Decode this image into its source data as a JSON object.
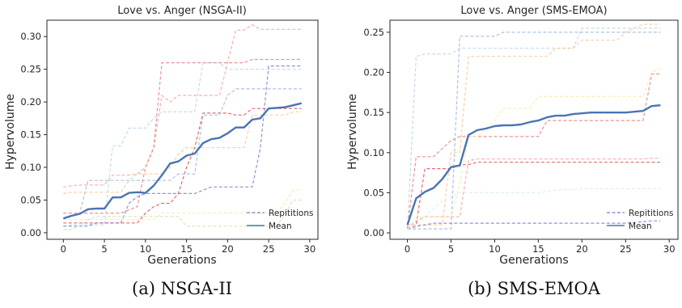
{
  "chart_data": [
    {
      "type": "line",
      "title": "Love vs. Anger (NSGA-II)",
      "xlabel": "Generations",
      "ylabel": "Hypervolume",
      "xlim": [
        -2,
        31
      ],
      "ylim": [
        -0.01,
        0.325
      ],
      "xticks": [
        0,
        5,
        10,
        15,
        20,
        25,
        30
      ],
      "yticks": [
        0.0,
        0.05,
        0.1,
        0.15,
        0.2,
        0.25,
        0.3
      ],
      "ytick_labels": [
        "0.00",
        "0.05",
        "0.10",
        "0.15",
        "0.20",
        "0.25",
        "0.30"
      ],
      "legend": {
        "position": "bottom-right",
        "entries": [
          "Repititions",
          "Mean"
        ]
      },
      "grid": false,
      "mean": {
        "name": "Mean",
        "color": "#4a74b4",
        "x": [
          0,
          1,
          2,
          3,
          4,
          5,
          6,
          7,
          8,
          9,
          10,
          11,
          12,
          13,
          14,
          15,
          16,
          17,
          18,
          19,
          20,
          21,
          22,
          23,
          24,
          25,
          26,
          27,
          28,
          29
        ],
        "y": [
          0.022,
          0.026,
          0.029,
          0.036,
          0.037,
          0.037,
          0.054,
          0.054,
          0.061,
          0.062,
          0.061,
          0.072,
          0.088,
          0.106,
          0.109,
          0.118,
          0.121,
          0.137,
          0.143,
          0.145,
          0.152,
          0.161,
          0.161,
          0.173,
          0.175,
          0.19,
          0.191,
          0.192,
          0.195,
          0.198
        ]
      },
      "repetitions": [
        {
          "color": "#f4a3a3",
          "y": [
            0.07,
            0.072,
            0.073,
            0.073,
            0.073,
            0.073,
            0.088,
            0.088,
            0.088,
            0.09,
            0.1,
            0.13,
            0.21,
            0.2,
            0.21,
            0.21,
            0.21,
            0.21,
            0.21,
            0.21,
            0.26,
            0.31,
            0.31,
            0.318,
            0.311,
            0.311,
            0.311,
            0.311,
            0.311,
            0.311
          ]
        },
        {
          "color": "#e88080",
          "y": [
            0.03,
            0.03,
            0.03,
            0.03,
            0.03,
            0.03,
            0.03,
            0.03,
            0.035,
            0.04,
            0.1,
            0.13,
            0.26,
            0.26,
            0.26,
            0.26,
            0.26,
            0.26,
            0.26,
            0.26,
            0.26,
            0.26,
            0.26,
            0.265,
            0.265,
            0.265,
            0.265,
            0.265,
            0.265,
            0.265
          ]
        },
        {
          "color": "#d9534f",
          "y": [
            0.015,
            0.015,
            0.015,
            0.015,
            0.015,
            0.015,
            0.015,
            0.015,
            0.015,
            0.015,
            0.03,
            0.04,
            0.045,
            0.045,
            0.06,
            0.1,
            0.13,
            0.183,
            0.183,
            0.183,
            0.183,
            0.18,
            0.18,
            0.19,
            0.19,
            0.19,
            0.19,
            0.19,
            0.19,
            0.19
          ]
        },
        {
          "color": "#9eb7de",
          "y": [
            0.02,
            0.025,
            0.03,
            0.08,
            0.08,
            0.08,
            0.08,
            0.08,
            0.08,
            0.08,
            0.08,
            0.08,
            0.08,
            0.08,
            0.09,
            0.09,
            0.09,
            0.18,
            0.18,
            0.18,
            0.21,
            0.22,
            0.22,
            0.22,
            0.22,
            0.22,
            0.22,
            0.22,
            0.22,
            0.22
          ]
        },
        {
          "color": "#b9d3ea",
          "y": [
            0.01,
            0.012,
            0.012,
            0.012,
            0.012,
            0.012,
            0.133,
            0.133,
            0.16,
            0.16,
            0.16,
            0.175,
            0.185,
            0.185,
            0.185,
            0.185,
            0.185,
            0.26,
            0.26,
            0.26,
            0.25,
            0.25,
            0.25,
            0.25,
            0.25,
            0.25,
            0.25,
            0.25,
            0.25,
            0.25
          ]
        },
        {
          "color": "#7d7fc8",
          "y": [
            0.01,
            0.01,
            0.01,
            0.01,
            0.015,
            0.015,
            0.015,
            0.015,
            0.045,
            0.055,
            0.06,
            0.06,
            0.06,
            0.06,
            0.06,
            0.06,
            0.06,
            0.065,
            0.07,
            0.07,
            0.07,
            0.07,
            0.07,
            0.07,
            0.13,
            0.255,
            0.255,
            0.255,
            0.255,
            0.255
          ]
        },
        {
          "color": "#f8c896",
          "y": [
            0.06,
            0.062,
            0.062,
            0.062,
            0.062,
            0.062,
            0.062,
            0.062,
            0.08,
            0.09,
            0.09,
            0.09,
            0.09,
            0.1,
            0.12,
            0.13,
            0.13,
            0.13,
            0.13,
            0.13,
            0.13,
            0.13,
            0.13,
            0.18,
            0.18,
            0.18,
            0.18,
            0.18,
            0.185,
            0.185
          ]
        },
        {
          "color": "#fbe7a8",
          "y": [
            0.02,
            0.02,
            0.02,
            0.02,
            0.02,
            0.02,
            0.02,
            0.02,
            0.02,
            0.02,
            0.02,
            0.02,
            0.03,
            0.03,
            0.03,
            0.03,
            0.03,
            0.03,
            0.03,
            0.03,
            0.03,
            0.03,
            0.03,
            0.03,
            0.03,
            0.03,
            0.03,
            0.045,
            0.065,
            0.065
          ]
        },
        {
          "color": "#cfe3b0",
          "y": [
            0.005,
            0.005,
            0.01,
            0.02,
            0.025,
            0.025,
            0.025,
            0.025,
            0.025,
            0.025,
            0.025,
            0.025,
            0.025,
            0.025,
            0.025,
            0.01,
            0.01,
            0.01,
            0.01,
            0.01,
            0.01,
            0.01,
            0.01,
            0.01,
            0.01,
            0.01,
            0.01,
            0.03,
            0.05,
            0.05
          ]
        }
      ]
    },
    {
      "type": "line",
      "title": "Love vs. Anger (SMS-EMOA)",
      "xlabel": "Generations",
      "ylabel": "Hypervolume",
      "xlim": [
        -2,
        31
      ],
      "ylim": [
        -0.008,
        0.265
      ],
      "xticks": [
        0,
        5,
        10,
        15,
        20,
        25,
        30
      ],
      "yticks": [
        0.0,
        0.05,
        0.1,
        0.15,
        0.2,
        0.25
      ],
      "ytick_labels": [
        "0.00",
        "0.05",
        "0.10",
        "0.15",
        "0.20",
        "0.25"
      ],
      "legend": {
        "position": "bottom-right",
        "entries": [
          "Repititions",
          "Mean"
        ]
      },
      "grid": false,
      "mean": {
        "name": "Mean",
        "color": "#4a74b4",
        "x": [
          0,
          1,
          2,
          3,
          4,
          5,
          6,
          7,
          8,
          9,
          10,
          11,
          12,
          13,
          14,
          15,
          16,
          17,
          18,
          19,
          20,
          21,
          22,
          23,
          24,
          25,
          26,
          27,
          28,
          29
        ],
        "y": [
          0.01,
          0.043,
          0.051,
          0.056,
          0.067,
          0.082,
          0.084,
          0.122,
          0.128,
          0.13,
          0.133,
          0.134,
          0.134,
          0.135,
          0.138,
          0.14,
          0.144,
          0.146,
          0.146,
          0.148,
          0.149,
          0.15,
          0.15,
          0.15,
          0.15,
          0.15,
          0.151,
          0.152,
          0.158,
          0.159
        ]
      },
      "repetitions": [
        {
          "color": "#b9d3ea",
          "y": [
            0.005,
            0.22,
            0.223,
            0.223,
            0.223,
            0.223,
            0.23,
            0.23,
            0.23,
            0.23,
            0.23,
            0.23,
            0.23,
            0.23,
            0.23,
            0.23,
            0.23,
            0.23,
            0.23,
            0.23,
            0.255,
            0.255,
            0.255,
            0.255,
            0.255,
            0.255,
            0.255,
            0.255,
            0.255,
            0.255
          ]
        },
        {
          "color": "#9eb7de",
          "y": [
            0.005,
            0.005,
            0.005,
            0.005,
            0.005,
            0.005,
            0.245,
            0.245,
            0.245,
            0.245,
            0.245,
            0.25,
            0.25,
            0.25,
            0.25,
            0.25,
            0.25,
            0.25,
            0.25,
            0.25,
            0.25,
            0.25,
            0.25,
            0.25,
            0.25,
            0.25,
            0.25,
            0.25,
            0.25,
            0.25
          ]
        },
        {
          "color": "#f8c896",
          "y": [
            0.01,
            0.01,
            0.01,
            0.01,
            0.01,
            0.1,
            0.1,
            0.22,
            0.22,
            0.22,
            0.22,
            0.22,
            0.22,
            0.22,
            0.22,
            0.22,
            0.22,
            0.23,
            0.23,
            0.23,
            0.24,
            0.24,
            0.24,
            0.24,
            0.24,
            0.25,
            0.255,
            0.26,
            0.26,
            0.26
          ]
        },
        {
          "color": "#e88080",
          "y": [
            0.005,
            0.095,
            0.095,
            0.095,
            0.105,
            0.115,
            0.12,
            0.12,
            0.12,
            0.12,
            0.12,
            0.12,
            0.12,
            0.12,
            0.12,
            0.12,
            0.14,
            0.14,
            0.14,
            0.14,
            0.14,
            0.14,
            0.14,
            0.14,
            0.14,
            0.14,
            0.14,
            0.14,
            0.198,
            0.198
          ]
        },
        {
          "color": "#d9534f",
          "y": [
            0.005,
            0.01,
            0.08,
            0.08,
            0.08,
            0.08,
            0.085,
            0.085,
            0.088,
            0.088,
            0.088,
            0.088,
            0.088,
            0.088,
            0.088,
            0.088,
            0.088,
            0.088,
            0.088,
            0.088,
            0.088,
            0.088,
            0.088,
            0.088,
            0.088,
            0.088,
            0.088,
            0.088,
            0.088,
            0.088
          ]
        },
        {
          "color": "#f4a3a3",
          "y": [
            0.005,
            0.015,
            0.02,
            0.02,
            0.02,
            0.02,
            0.02,
            0.09,
            0.092,
            0.092,
            0.092,
            0.092,
            0.092,
            0.092,
            0.092,
            0.092,
            0.092,
            0.092,
            0.092,
            0.092,
            0.092,
            0.092,
            0.092,
            0.092,
            0.092,
            0.092,
            0.092,
            0.092,
            0.093,
            0.093
          ]
        },
        {
          "color": "#fbe7a8",
          "y": [
            0.005,
            0.02,
            0.02,
            0.02,
            0.02,
            0.02,
            0.06,
            0.12,
            0.12,
            0.13,
            0.14,
            0.155,
            0.155,
            0.155,
            0.155,
            0.17,
            0.17,
            0.17,
            0.17,
            0.17,
            0.17,
            0.17,
            0.17,
            0.17,
            0.17,
            0.17,
            0.17,
            0.17,
            0.2,
            0.205
          ]
        },
        {
          "color": "#7d7fc8",
          "y": [
            0.005,
            0.008,
            0.01,
            0.012,
            0.012,
            0.012,
            0.012,
            0.012,
            0.012,
            0.012,
            0.012,
            0.012,
            0.012,
            0.012,
            0.012,
            0.012,
            0.012,
            0.012,
            0.012,
            0.012,
            0.012,
            0.012,
            0.012,
            0.012,
            0.012,
            0.012,
            0.013,
            0.014,
            0.015,
            0.015
          ]
        },
        {
          "color": "#d8ecf3",
          "y": [
            0.005,
            0.01,
            0.02,
            0.03,
            0.04,
            0.045,
            0.05,
            0.05,
            0.05,
            0.05,
            0.05,
            0.05,
            0.05,
            0.05,
            0.05,
            0.05,
            0.052,
            0.053,
            0.054,
            0.054,
            0.055,
            0.055,
            0.055,
            0.055,
            0.055,
            0.055,
            0.055,
            0.055,
            0.055,
            0.055
          ]
        }
      ]
    }
  ],
  "captions": [
    "(a) NSGA-II",
    "(b) SMS-EMOA"
  ]
}
